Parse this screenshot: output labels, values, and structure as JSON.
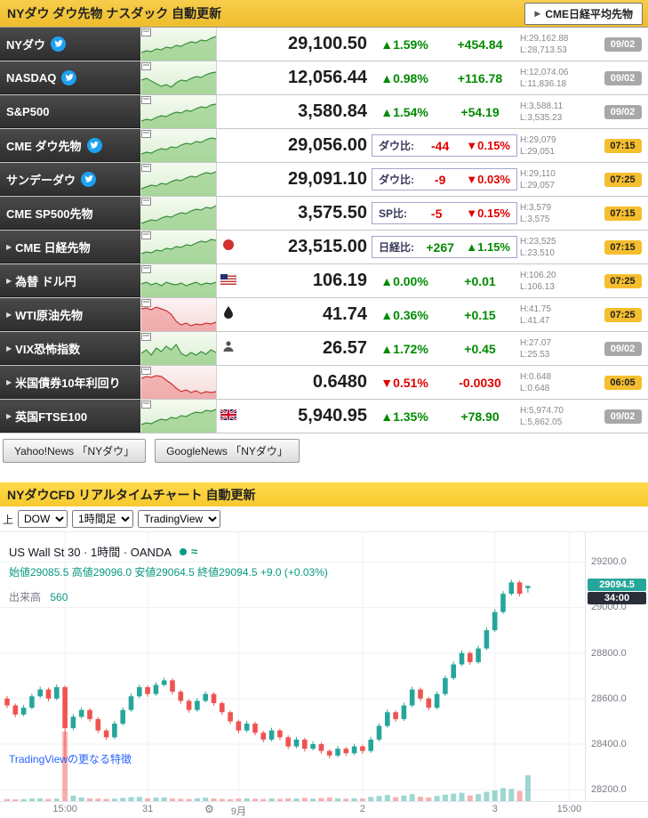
{
  "colors": {
    "up": "#008a00",
    "down": "#e00000",
    "header_gold": "#f3c636",
    "header_yellow": "#fcd13c",
    "badge_time": "#f5be2e",
    "badge_date": "#a8a8a8",
    "candle_up": "#26a69a",
    "candle_down": "#ef5350",
    "accent_link": "#2962ff",
    "twitter_blue": "#1da1f2"
  },
  "header1": {
    "title": "NYダウ ダウ先物 ナスダック 自動更新",
    "button": "CME日経平均先物"
  },
  "header2": {
    "title": "NYダウCFD リアルタイムチャート 自動更新"
  },
  "news": {
    "buttons": [
      "Yahoo!News 「NYダウ」",
      "GoogleNews 「NYダウ」"
    ]
  },
  "controls": {
    "label": "上",
    "selects": [
      {
        "name": "symbol-select",
        "value": "DOW"
      },
      {
        "name": "timeframe-select",
        "value": "1時間足"
      },
      {
        "name": "provider-select",
        "value": "TradingView"
      }
    ]
  },
  "table": {
    "spark_styles": {
      "green": {
        "line": "#388e3c",
        "fill": "rgba(125,195,110,0.55)"
      },
      "red": {
        "line": "#cc3333",
        "fill": "rgba(235,125,125,0.5)"
      }
    },
    "rows": [
      {
        "name": "NYダウ",
        "twitter": true,
        "arrow": false,
        "icon": null,
        "spark": {
          "trend": "green",
          "points": [
            8,
            10,
            9,
            12,
            11,
            14,
            13,
            16,
            15,
            18,
            20,
            19,
            22,
            21,
            24,
            26
          ]
        },
        "price": "29,100.50",
        "mode": "simple",
        "dir": "up",
        "pct": "▲1.59%",
        "chg": "+454.84",
        "high": "H:29,162.88",
        "low": "L:28,713.53",
        "badge": "09/02",
        "badge_type": "date"
      },
      {
        "name": "NASDAQ",
        "twitter": true,
        "arrow": false,
        "icon": null,
        "spark": {
          "trend": "green",
          "points": [
            15,
            17,
            14,
            11,
            8,
            10,
            7,
            12,
            15,
            14,
            17,
            19,
            18,
            21,
            23,
            24
          ]
        },
        "price": "12,056.44",
        "mode": "simple",
        "dir": "up",
        "pct": "▲0.98%",
        "chg": "+116.78",
        "high": "H:12,074.06",
        "low": "L:11,836.18",
        "badge": "09/02",
        "badge_type": "date"
      },
      {
        "name": "S&P500",
        "twitter": false,
        "arrow": false,
        "icon": null,
        "spark": {
          "trend": "green",
          "points": [
            7,
            9,
            8,
            11,
            13,
            12,
            15,
            17,
            16,
            19,
            18,
            21,
            23,
            22,
            25,
            26
          ]
        },
        "price": "3,580.84",
        "mode": "simple",
        "dir": "up",
        "pct": "▲1.54%",
        "chg": "+54.19",
        "high": "H:3,588.11",
        "low": "L:3,535.23",
        "badge": "09/02",
        "badge_type": "date"
      },
      {
        "name": "CME ダウ先物",
        "twitter": true,
        "arrow": false,
        "icon": null,
        "spark": {
          "trend": "green",
          "points": [
            8,
            10,
            9,
            12,
            14,
            13,
            16,
            15,
            18,
            20,
            19,
            22,
            21,
            24,
            26,
            25
          ]
        },
        "price": "29,056.00",
        "mode": "compare",
        "cmp_label": "ダウ比:",
        "cmp_value": "-44",
        "cmp_pct": "▼0.15%",
        "cmp_dir": "down",
        "high": "H:29,079",
        "low": "L:29,051",
        "badge": "07:15",
        "badge_type": "time"
      },
      {
        "name": "サンデーダウ",
        "twitter": true,
        "arrow": false,
        "icon": null,
        "spark": {
          "trend": "green",
          "points": [
            7,
            9,
            11,
            10,
            13,
            12,
            15,
            17,
            16,
            19,
            21,
            20,
            23,
            25,
            24,
            26
          ]
        },
        "price": "29,091.10",
        "mode": "compare",
        "cmp_label": "ダウ比:",
        "cmp_value": "-9",
        "cmp_pct": "▼0.03%",
        "cmp_dir": "down",
        "high": "H:29,110",
        "low": "L:29,057",
        "badge": "07:25",
        "badge_type": "time"
      },
      {
        "name": "CME SP500先物",
        "twitter": false,
        "arrow": false,
        "icon": null,
        "spark": {
          "trend": "green",
          "points": [
            6,
            8,
            10,
            9,
            12,
            14,
            13,
            16,
            18,
            17,
            20,
            22,
            21,
            24,
            23,
            26
          ]
        },
        "price": "3,575.50",
        "mode": "compare",
        "cmp_label": "SP比:",
        "cmp_value": "-5",
        "cmp_pct": "▼0.15%",
        "cmp_dir": "down",
        "high": "H:3,579",
        "low": "L:3,575",
        "badge": "07:15",
        "badge_type": "time"
      },
      {
        "name": "CME 日経先物",
        "twitter": false,
        "arrow": true,
        "icon": "japan-flag-icon",
        "spark": {
          "trend": "green",
          "points": [
            10,
            12,
            11,
            14,
            13,
            16,
            15,
            18,
            17,
            20,
            19,
            22,
            24,
            23,
            26,
            25
          ]
        },
        "price": "23,515.00",
        "mode": "compare",
        "cmp_label": "日経比:",
        "cmp_value": "+267",
        "cmp_pct": "▲1.15%",
        "cmp_dir": "up",
        "high": "H:23,525",
        "low": "L:23,510",
        "badge": "07:15",
        "badge_type": "time"
      },
      {
        "name": "為替 ドル円",
        "twitter": false,
        "arrow": true,
        "icon": "us-flag-icon",
        "spark": {
          "trend": "green",
          "points": [
            14,
            16,
            13,
            15,
            12,
            16,
            14,
            13,
            15,
            12,
            14,
            16,
            13,
            15,
            14,
            16
          ]
        },
        "price": "106.19",
        "mode": "simple",
        "dir": "up",
        "pct": "▲0.00%",
        "chg": "+0.01",
        "high": "H:106.20",
        "low": "L:106.13",
        "badge": "07:25",
        "badge_type": "time"
      },
      {
        "name": "WTI原油先物",
        "twitter": false,
        "arrow": true,
        "icon": "oil-drop-icon",
        "spark": {
          "trend": "red",
          "points": [
            24,
            25,
            23,
            26,
            24,
            22,
            18,
            10,
            6,
            8,
            5,
            7,
            6,
            8,
            7,
            9
          ]
        },
        "price": "41.74",
        "mode": "simple",
        "dir": "up",
        "pct": "▲0.36%",
        "chg": "+0.15",
        "high": "H:41.75",
        "low": "L:41.47",
        "badge": "07:25",
        "badge_type": "time"
      },
      {
        "name": "VIX恐怖指数",
        "twitter": false,
        "arrow": true,
        "icon": "person-icon",
        "spark": {
          "trend": "green",
          "points": [
            12,
            16,
            10,
            18,
            14,
            20,
            16,
            22,
            12,
            9,
            13,
            10,
            14,
            11,
            16,
            13
          ]
        },
        "price": "26.57",
        "mode": "simple",
        "dir": "up",
        "pct": "▲1.72%",
        "chg": "+0.45",
        "high": "H:27.07",
        "low": "L:25.53",
        "badge": "09/02",
        "badge_type": "date"
      },
      {
        "name": "米国債券10年利回り",
        "twitter": false,
        "arrow": true,
        "icon": null,
        "spark": {
          "trend": "red",
          "points": [
            22,
            24,
            23,
            25,
            24,
            20,
            16,
            11,
            7,
            9,
            6,
            8,
            5,
            7,
            6,
            7
          ]
        },
        "price": "0.6480",
        "mode": "simple",
        "dir": "down",
        "pct": "▼0.51%",
        "chg": "-0.0030",
        "high": "H:0.648",
        "low": "L:0.648",
        "badge": "06:05",
        "badge_type": "time"
      },
      {
        "name": "英国FTSE100",
        "twitter": false,
        "arrow": true,
        "icon": "uk-flag-icon",
        "spark": {
          "trend": "green",
          "points": [
            8,
            10,
            9,
            12,
            14,
            13,
            16,
            15,
            18,
            17,
            20,
            22,
            21,
            24,
            23,
            25
          ]
        },
        "price": "5,940.95",
        "mode": "simple",
        "dir": "up",
        "pct": "▲1.35%",
        "chg": "+78.90",
        "high": "H:5,974.70",
        "low": "L:5,862.05",
        "badge": "09/02",
        "badge_type": "date"
      }
    ]
  },
  "chart": {
    "title": "US Wall St 30 · 1時間 · OANDA",
    "ohlc": "始値29085.5 高値29096.0 安値29064.5 終値29094.5 +9.0 (+0.03%)",
    "volume_label": "出来高",
    "volume_value": "560",
    "link": "TradingViewの更なる特徴",
    "last_price": "29094.5",
    "countdown": "34:00"
  },
  "chart_data": {
    "type": "candlestick",
    "symbol": "US Wall St 30",
    "interval": "1時間",
    "exchange": "OANDA",
    "open": 29085.5,
    "high": 29096.0,
    "low": 29064.5,
    "close": 29094.5,
    "change": "+9.0 (+0.03%)",
    "volume": 560,
    "ylim": [
      28150,
      29330
    ],
    "y_ticks": [
      29200,
      29000,
      28800,
      28600,
      28400,
      28200
    ],
    "x_ticks": [
      {
        "label": "15:00",
        "i": 7
      },
      {
        "label": "31",
        "i": 17
      },
      {
        "label": "9月",
        "i": 28
      },
      {
        "label": "2",
        "i": 43
      },
      {
        "label": "3",
        "i": 59
      },
      {
        "label": "15:00",
        "i": 68
      }
    ],
    "candles": [
      [
        28600,
        28612,
        28558,
        28570
      ],
      [
        28570,
        28578,
        28518,
        28530
      ],
      [
        28530,
        28572,
        28522,
        28560
      ],
      [
        28560,
        28622,
        28552,
        28610
      ],
      [
        28610,
        28652,
        28602,
        28640
      ],
      [
        28640,
        28648,
        28588,
        28600
      ],
      [
        28600,
        28662,
        28592,
        28650
      ],
      [
        28650,
        28658,
        28330,
        28470
      ],
      [
        28470,
        28532,
        28462,
        28520
      ],
      [
        28520,
        28562,
        28512,
        28550
      ],
      [
        28550,
        28558,
        28498,
        28510
      ],
      [
        28510,
        28518,
        28448,
        28460
      ],
      [
        28460,
        28468,
        28418,
        28430
      ],
      [
        28430,
        28502,
        28422,
        28490
      ],
      [
        28490,
        28562,
        28482,
        28550
      ],
      [
        28550,
        28622,
        28542,
        28610
      ],
      [
        28610,
        28662,
        28602,
        28650
      ],
      [
        28650,
        28658,
        28608,
        28620
      ],
      [
        28620,
        28672,
        28612,
        28660
      ],
      [
        28660,
        28692,
        28652,
        28680
      ],
      [
        28680,
        28688,
        28618,
        28630
      ],
      [
        28630,
        28638,
        28578,
        28590
      ],
      [
        28590,
        28598,
        28538,
        28550
      ],
      [
        28550,
        28602,
        28542,
        28590
      ],
      [
        28590,
        28632,
        28582,
        28620
      ],
      [
        28620,
        28628,
        28568,
        28580
      ],
      [
        28580,
        28588,
        28528,
        28540
      ],
      [
        28540,
        28548,
        28488,
        28500
      ],
      [
        28500,
        28508,
        28448,
        28460
      ],
      [
        28460,
        28502,
        28452,
        28490
      ],
      [
        28490,
        28498,
        28438,
        28450
      ],
      [
        28450,
        28458,
        28408,
        28420
      ],
      [
        28420,
        28472,
        28412,
        28460
      ],
      [
        28460,
        28468,
        28418,
        28430
      ],
      [
        28430,
        28438,
        28378,
        28390
      ],
      [
        28390,
        28432,
        28382,
        28420
      ],
      [
        28420,
        28428,
        28368,
        28380
      ],
      [
        28380,
        28412,
        28372,
        28400
      ],
      [
        28400,
        28408,
        28358,
        28370
      ],
      [
        28370,
        28378,
        28338,
        28350
      ],
      [
        28350,
        28392,
        28342,
        28380
      ],
      [
        28380,
        28388,
        28348,
        28360
      ],
      [
        28360,
        28402,
        28352,
        28390
      ],
      [
        28390,
        28398,
        28358,
        28370
      ],
      [
        28370,
        28432,
        28362,
        28420
      ],
      [
        28420,
        28492,
        28412,
        28480
      ],
      [
        28480,
        28552,
        28472,
        28540
      ],
      [
        28540,
        28548,
        28498,
        28510
      ],
      [
        28510,
        28582,
        28502,
        28570
      ],
      [
        28570,
        28652,
        28562,
        28640
      ],
      [
        28640,
        28648,
        28588,
        28600
      ],
      [
        28600,
        28608,
        28548,
        28560
      ],
      [
        28560,
        28632,
        28552,
        28620
      ],
      [
        28620,
        28702,
        28612,
        28690
      ],
      [
        28690,
        28762,
        28682,
        28750
      ],
      [
        28750,
        28812,
        28742,
        28800
      ],
      [
        28800,
        28808,
        28748,
        28760
      ],
      [
        28760,
        28832,
        28752,
        28820
      ],
      [
        28820,
        28912,
        28812,
        28900
      ],
      [
        28900,
        28992,
        28892,
        28980
      ],
      [
        28980,
        29072,
        28972,
        29060
      ],
      [
        29060,
        29122,
        29052,
        29110
      ],
      [
        29110,
        29118,
        29048,
        29060
      ],
      [
        29085.5,
        29096,
        29064.5,
        29094.5
      ]
    ],
    "volumes": [
      45,
      38,
      42,
      55,
      60,
      48,
      52,
      1500,
      120,
      80,
      60,
      55,
      48,
      52,
      70,
      85,
      90,
      60,
      75,
      80,
      55,
      50,
      45,
      60,
      72,
      58,
      48,
      42,
      55,
      60,
      50,
      45,
      58,
      48,
      62,
      55,
      70,
      52,
      65,
      80,
      58,
      52,
      60,
      55,
      90,
      110,
      130,
      85,
      120,
      150,
      95,
      80,
      110,
      140,
      160,
      180,
      120,
      150,
      200,
      230,
      280,
      260,
      220,
      560
    ]
  }
}
